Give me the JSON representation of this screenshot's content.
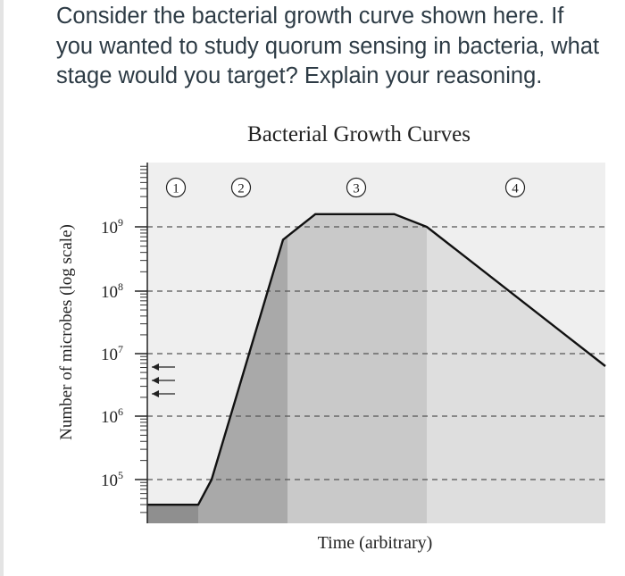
{
  "question": {
    "text": "Consider the bacterial growth curve shown here. If you wanted to study quorum sensing in bacteria, what stage would you target? Explain your reasoning."
  },
  "chart_data": {
    "type": "area",
    "title": "Bacterial Growth Curves",
    "xlabel": "Time (arbitrary)",
    "ylabel": "Number of microbes (log scale)",
    "y_scale": "log",
    "y_ticks": [
      {
        "exp": 9,
        "label": "10",
        "sup": "9"
      },
      {
        "exp": 8,
        "label": "10",
        "sup": "8"
      },
      {
        "exp": 7,
        "label": "10",
        "sup": "7"
      },
      {
        "exp": 6,
        "label": "10",
        "sup": "6"
      },
      {
        "exp": 5,
        "label": "10",
        "sup": "5"
      }
    ],
    "phases": [
      {
        "label": "1",
        "t_start": 0,
        "t_end": 1,
        "shade": "#a9a9a9"
      },
      {
        "label": "2",
        "t_start": 1,
        "t_end": 3,
        "shade": "#a9a9a9"
      },
      {
        "label": "3",
        "t_start": 3,
        "t_end": 6,
        "shade": "#c9c9c9"
      },
      {
        "label": "4",
        "t_start": 6,
        "t_end": 9.6,
        "shade": "#dedede"
      }
    ],
    "curve": [
      {
        "t": 0,
        "log10_n": 4.6
      },
      {
        "t": 1.0,
        "log10_n": 4.6
      },
      {
        "t": 1.3,
        "log10_n": 5.0
      },
      {
        "t": 2.9,
        "log10_n": 8.8
      },
      {
        "t": 3.6,
        "log10_n": 9.2
      },
      {
        "t": 5.3,
        "log10_n": 9.2
      },
      {
        "t": 6.0,
        "log10_n": 9.0
      },
      {
        "t": 9.6,
        "log10_n": 6.8
      }
    ],
    "xlim": [
      0,
      9.6
    ],
    "ylim": [
      4.2,
      10.0
    ],
    "arrows_count": 3,
    "grid": "dashed reference lines at each labeled decade",
    "colors": {
      "curve": "#111111",
      "plot_bg": "#efefef",
      "lag": "#8f8f8f"
    }
  }
}
